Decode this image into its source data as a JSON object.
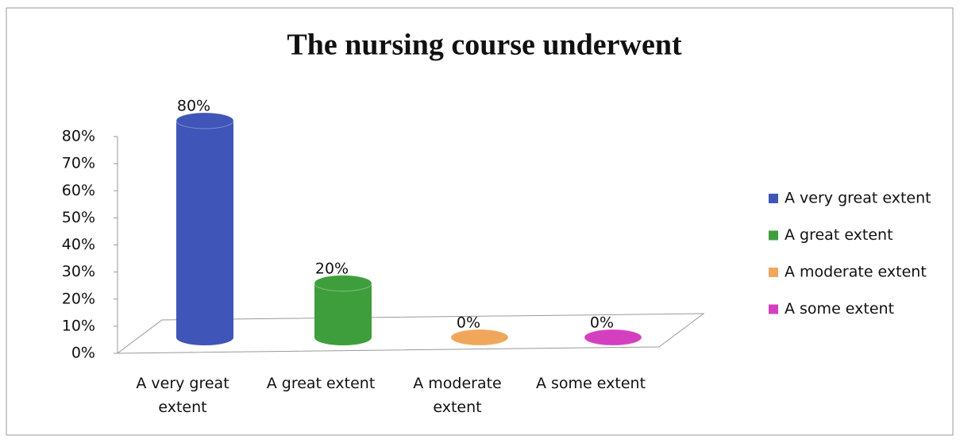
{
  "chart_data": {
    "type": "bar3d",
    "title": "The nursing course underwent",
    "categories": [
      "A very great extent",
      "A great extent",
      "A moderate extent",
      "A some extent"
    ],
    "values": [
      80,
      20,
      0,
      0
    ],
    "value_labels": [
      "80%",
      "20%",
      "0%",
      "0%"
    ],
    "colors": [
      "#3f55b8",
      "#3f9e3c",
      "#f0a75c",
      "#d43fbf"
    ],
    "ylim": [
      0,
      80
    ],
    "yticks": [
      {
        "value": 0,
        "label": "0%"
      },
      {
        "value": 10,
        "label": "10%"
      },
      {
        "value": 20,
        "label": "20%"
      },
      {
        "value": 30,
        "label": "30%"
      },
      {
        "value": 40,
        "label": "40%"
      },
      {
        "value": 50,
        "label": "50%"
      },
      {
        "value": 60,
        "label": "60%"
      },
      {
        "value": 70,
        "label": "70%"
      },
      {
        "value": 80,
        "label": "80%"
      }
    ],
    "legend": "right"
  }
}
